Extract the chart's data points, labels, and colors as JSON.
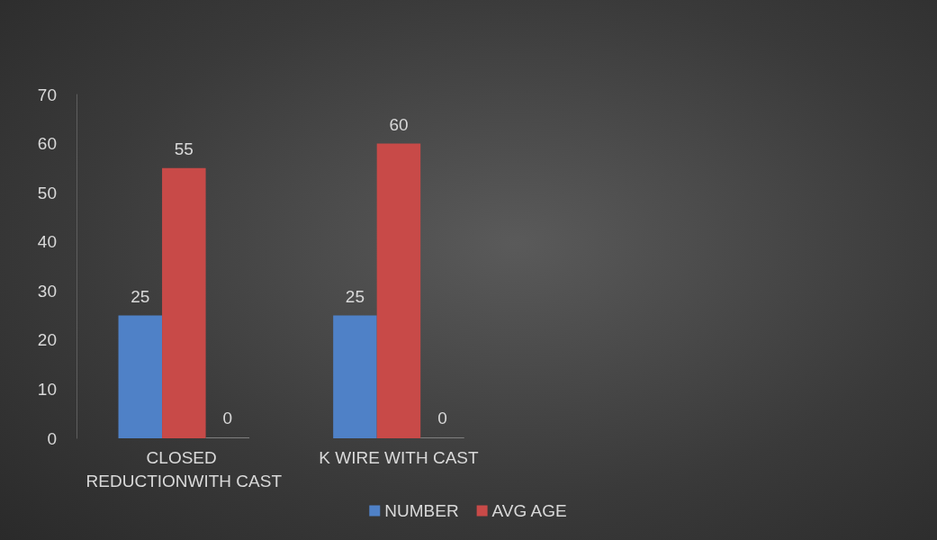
{
  "chart_data": {
    "type": "bar",
    "categories": [
      "CLOSED REDUCTIONWITH CAST",
      "K WIRE WITH CAST",
      null,
      null
    ],
    "series": [
      {
        "name": "NUMBER",
        "color": "#4f81c7",
        "values": [
          25,
          25,
          null,
          null
        ]
      },
      {
        "name": "AVG AGE",
        "color": "#c84a48",
        "values": [
          55,
          60,
          null,
          null
        ]
      },
      {
        "color": "#7f7f7f",
        "values": [
          0,
          0,
          null,
          null
        ]
      }
    ],
    "ylim": [
      0,
      70
    ],
    "yticks": [
      0,
      10,
      20,
      30,
      40,
      50,
      60,
      70
    ],
    "grid": false,
    "legend": "bottom",
    "data_labels": true
  }
}
